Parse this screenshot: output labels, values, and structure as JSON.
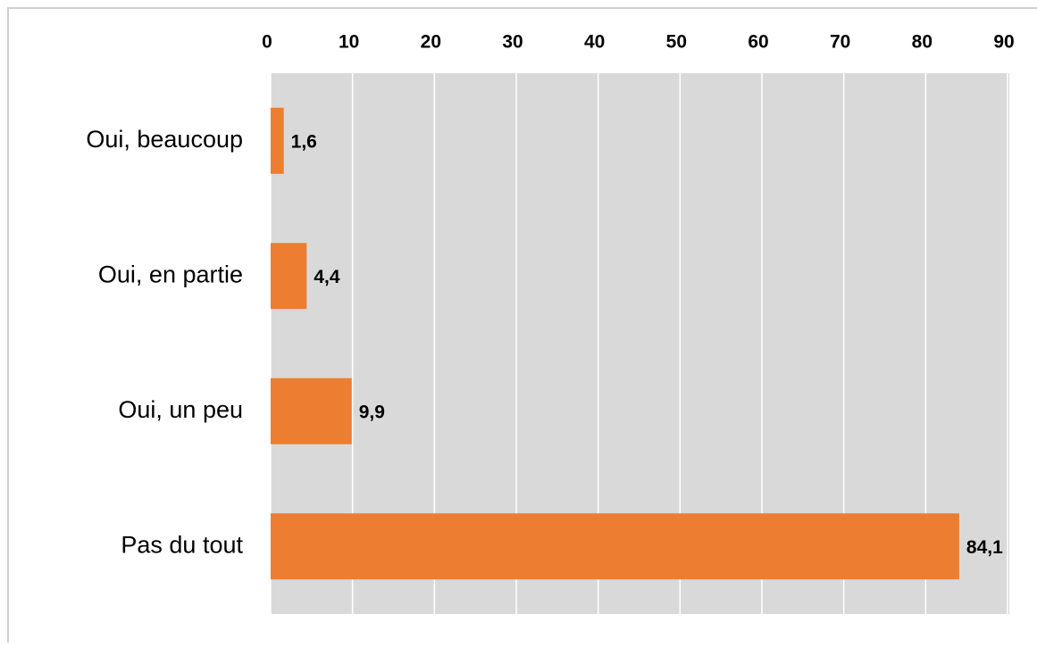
{
  "chart_data": {
    "type": "barh",
    "categories": [
      "Oui, beaucoup",
      "Oui, en partie",
      "Oui, un peu",
      "Pas du tout"
    ],
    "values": [
      1.6,
      4.4,
      9.9,
      84.1
    ],
    "value_labels": [
      "1,6",
      "4,4",
      "9,9",
      "84,1"
    ],
    "color": "#ed7d31",
    "xlim": [
      0,
      90
    ],
    "xticks": [
      0,
      10,
      20,
      30,
      40,
      50,
      60,
      70,
      80,
      90
    ],
    "grid": true
  }
}
